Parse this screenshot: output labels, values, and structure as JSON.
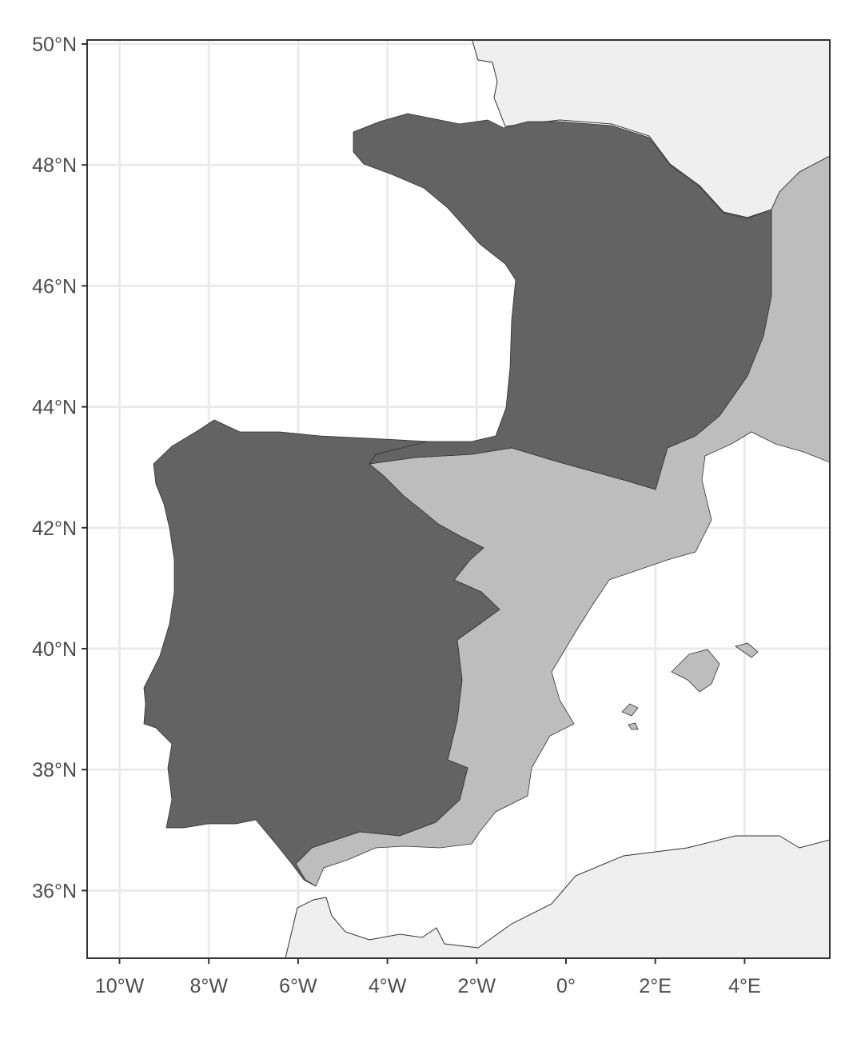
{
  "map": {
    "axes": {
      "lon_range": [
        -10.7,
        5.9
      ],
      "lat_range": [
        34.8,
        50.1
      ],
      "x_ticks": [
        {
          "value": -10,
          "label": "10°W"
        },
        {
          "value": -8,
          "label": "8°W"
        },
        {
          "value": -6,
          "label": "6°W"
        },
        {
          "value": -4,
          "label": "4°W"
        },
        {
          "value": -2,
          "label": "2°W"
        },
        {
          "value": 0,
          "label": "0°"
        },
        {
          "value": 2,
          "label": "2°E"
        },
        {
          "value": 4,
          "label": "4°E"
        }
      ],
      "y_ticks": [
        {
          "value": 50,
          "label": "50°N"
        },
        {
          "value": 48,
          "label": "48°N"
        },
        {
          "value": 46,
          "label": "46°N"
        },
        {
          "value": 44,
          "label": "44°N"
        },
        {
          "value": 42,
          "label": "42°N"
        },
        {
          "value": 40,
          "label": "40°N"
        },
        {
          "value": 38,
          "label": "38°N"
        },
        {
          "value": 36,
          "label": "36°N"
        }
      ],
      "grid": true
    },
    "colors": {
      "dark_region": "#636363",
      "light_region": "#bdbdbd",
      "background_land": "#efefef",
      "sea": "#ffffff",
      "grid": "#ebebeb",
      "coast_outline": "#333333"
    }
  }
}
